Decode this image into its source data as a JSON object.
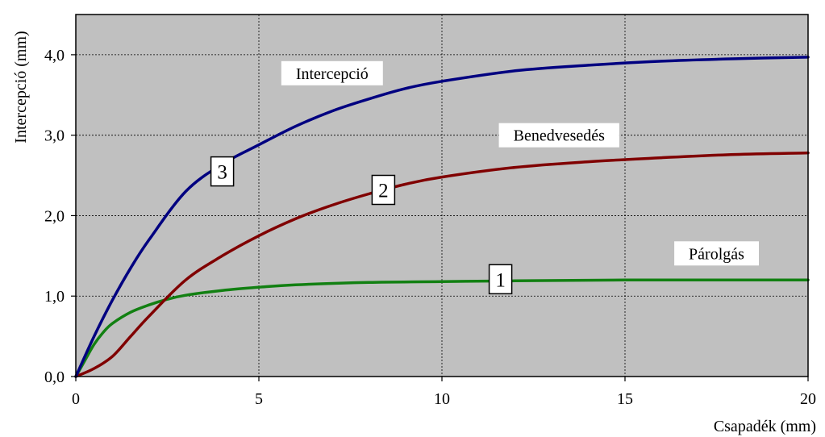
{
  "chart_data": {
    "type": "line",
    "title": "",
    "xlabel": "Csapadék (mm)",
    "ylabel": "Intercepció (mm)",
    "xlim": [
      0,
      20
    ],
    "ylim": [
      0,
      4.5
    ],
    "x_ticks": [
      0,
      5,
      10,
      15,
      20
    ],
    "x_tick_labels": [
      "0",
      "5",
      "10",
      "15",
      "20"
    ],
    "y_ticks": [
      0,
      1,
      2,
      3,
      4
    ],
    "y_tick_labels": [
      "0,0",
      "1,0",
      "2,0",
      "3,0",
      "4,0"
    ],
    "grid": true,
    "background_color": "#c0c0c0",
    "series": [
      {
        "id": "1",
        "name": "Párolgás",
        "color": "#128012",
        "x": [
          0,
          0.25,
          0.5,
          0.75,
          1,
          1.5,
          2,
          2.5,
          3,
          4,
          5,
          6,
          8,
          10,
          12,
          15,
          20
        ],
        "y": [
          0,
          0.2,
          0.4,
          0.55,
          0.66,
          0.8,
          0.89,
          0.96,
          1.01,
          1.07,
          1.11,
          1.14,
          1.17,
          1.18,
          1.19,
          1.2,
          1.2
        ]
      },
      {
        "id": "2",
        "name": "Benedvesedés",
        "color": "#800000",
        "x": [
          0,
          0.5,
          1,
          1.5,
          2,
          3,
          4,
          5,
          6,
          7,
          8,
          9,
          10,
          12,
          14,
          16,
          18,
          20
        ],
        "y": [
          0,
          0.1,
          0.25,
          0.5,
          0.75,
          1.2,
          1.5,
          1.75,
          1.96,
          2.13,
          2.27,
          2.39,
          2.48,
          2.6,
          2.67,
          2.72,
          2.76,
          2.78
        ]
      },
      {
        "id": "3",
        "name": "Intercepció",
        "color": "#000080",
        "x": [
          0,
          0.5,
          1,
          1.5,
          2,
          3,
          4,
          5,
          6,
          7,
          8,
          9,
          10,
          12,
          14,
          16,
          18,
          20
        ],
        "y": [
          0,
          0.5,
          0.95,
          1.35,
          1.7,
          2.3,
          2.64,
          2.88,
          3.11,
          3.3,
          3.45,
          3.58,
          3.67,
          3.8,
          3.87,
          3.92,
          3.95,
          3.97
        ]
      }
    ],
    "annotations": [
      {
        "text": "Intercepció",
        "x": 7,
        "y": 3.77
      },
      {
        "text": "Benedvesedés",
        "x": 13.2,
        "y": 3.0
      },
      {
        "text": "Párolgás",
        "x": 17.5,
        "y": 1.53
      }
    ],
    "curve_labels": [
      {
        "text": "1",
        "x": 11.6,
        "y": 1.21
      },
      {
        "text": "2",
        "x": 8.4,
        "y": 2.32
      },
      {
        "text": "3",
        "x": 4.0,
        "y": 2.55
      }
    ]
  }
}
